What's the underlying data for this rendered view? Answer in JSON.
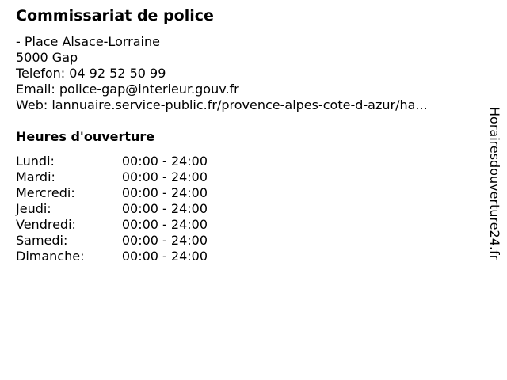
{
  "title": "Commissariat de police",
  "address": {
    "street": "- Place Alsace-Lorraine",
    "city": "5000 Gap",
    "phone": "Telefon: 04 92 52 50 99",
    "email": "Email: police-gap@interieur.gouv.fr",
    "web": "Web: lannuaire.service-public.fr/provence-alpes-cote-d-azur/ha..."
  },
  "hours_title": "Heures d'ouverture",
  "hours": [
    {
      "day": "Lundi:",
      "time": "00:00 - 24:00"
    },
    {
      "day": "Mardi:",
      "time": "00:00 - 24:00"
    },
    {
      "day": "Mercredi:",
      "time": "00:00 - 24:00"
    },
    {
      "day": "Jeudi:",
      "time": "00:00 - 24:00"
    },
    {
      "day": "Vendredi:",
      "time": "00:00 - 24:00"
    },
    {
      "day": "Samedi:",
      "time": "00:00 - 24:00"
    },
    {
      "day": "Dimanche:",
      "time": "00:00 - 24:00"
    }
  ],
  "site_name": "Horairesdouverture24.fr"
}
